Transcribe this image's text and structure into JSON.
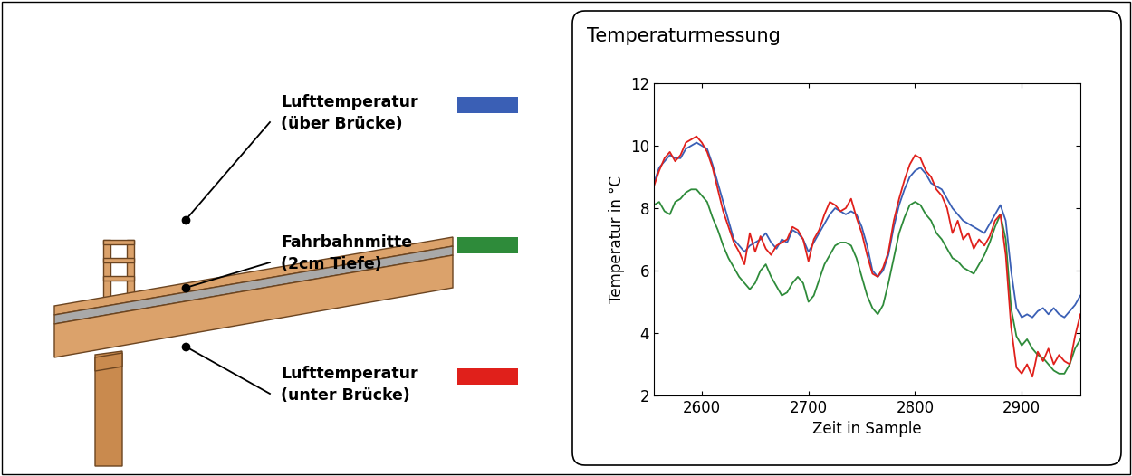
{
  "chart_data": {
    "type": "line",
    "title": "Temperaturmessung",
    "x_label": "Zeit in Sample",
    "y_label": "Temperatur in °C",
    "x": [
      2555,
      2560,
      2565,
      2570,
      2575,
      2580,
      2585,
      2590,
      2595,
      2600,
      2605,
      2610,
      2615,
      2620,
      2625,
      2630,
      2635,
      2640,
      2645,
      2650,
      2655,
      2660,
      2665,
      2670,
      2675,
      2680,
      2685,
      2690,
      2695,
      2700,
      2705,
      2710,
      2715,
      2720,
      2725,
      2730,
      2735,
      2740,
      2745,
      2750,
      2755,
      2760,
      2765,
      2770,
      2775,
      2780,
      2785,
      2790,
      2795,
      2800,
      2805,
      2810,
      2815,
      2820,
      2825,
      2830,
      2835,
      2840,
      2845,
      2850,
      2855,
      2860,
      2865,
      2870,
      2875,
      2880,
      2885,
      2890,
      2895,
      2900,
      2905,
      2910,
      2915,
      2920,
      2925,
      2930,
      2935,
      2940,
      2945,
      2950,
      2955
    ],
    "series": [
      {
        "name": "Lufttemperatur (über Brücke)",
        "color": "#3a5fb5",
        "values": [
          8.8,
          9.3,
          9.5,
          9.7,
          9.6,
          9.6,
          9.9,
          10.0,
          10.1,
          10.0,
          9.9,
          9.4,
          8.8,
          8.2,
          7.6,
          7.0,
          6.8,
          6.6,
          6.8,
          6.9,
          7.0,
          7.2,
          6.9,
          6.7,
          7.0,
          6.9,
          7.3,
          7.2,
          7.0,
          6.6,
          6.9,
          7.2,
          7.5,
          7.8,
          8.0,
          7.9,
          7.8,
          7.9,
          7.8,
          7.4,
          6.8,
          6.0,
          5.8,
          6.0,
          6.5,
          7.4,
          8.1,
          8.6,
          9.0,
          9.2,
          9.3,
          9.1,
          8.8,
          8.7,
          8.6,
          8.3,
          8.0,
          7.8,
          7.6,
          7.5,
          7.4,
          7.3,
          7.2,
          7.5,
          7.8,
          8.1,
          7.6,
          6.0,
          4.8,
          4.5,
          4.6,
          4.5,
          4.7,
          4.8,
          4.6,
          4.8,
          4.6,
          4.5,
          4.7,
          4.9,
          5.2
        ]
      },
      {
        "name": "Fahrbahnmitte (2cm Tiefe)",
        "color": "#2e8b3a",
        "values": [
          8.1,
          8.2,
          7.9,
          7.8,
          8.2,
          8.3,
          8.5,
          8.6,
          8.6,
          8.4,
          8.2,
          7.7,
          7.3,
          6.8,
          6.4,
          6.1,
          5.8,
          5.6,
          5.4,
          5.6,
          6.0,
          6.2,
          5.8,
          5.5,
          5.2,
          5.3,
          5.6,
          5.8,
          5.6,
          5.0,
          5.2,
          5.7,
          6.2,
          6.5,
          6.8,
          6.9,
          6.9,
          6.8,
          6.4,
          5.8,
          5.2,
          4.8,
          4.6,
          4.9,
          5.6,
          6.4,
          7.2,
          7.7,
          8.1,
          8.2,
          8.1,
          7.8,
          7.6,
          7.2,
          7.0,
          6.7,
          6.4,
          6.3,
          6.1,
          6.0,
          5.9,
          6.2,
          6.5,
          6.9,
          7.4,
          7.8,
          7.0,
          4.8,
          3.9,
          3.6,
          3.8,
          3.5,
          3.3,
          3.2,
          3.0,
          2.8,
          2.7,
          2.7,
          3.0,
          3.5,
          3.8
        ]
      },
      {
        "name": "Lufttemperatur (unter Brücke)",
        "color": "#e0201b",
        "values": [
          8.7,
          9.2,
          9.6,
          9.8,
          9.5,
          9.7,
          10.1,
          10.2,
          10.3,
          10.1,
          9.8,
          9.3,
          8.6,
          7.9,
          7.4,
          6.9,
          6.6,
          6.2,
          7.2,
          6.6,
          7.1,
          6.7,
          6.5,
          6.8,
          6.9,
          7.0,
          7.4,
          7.3,
          7.0,
          6.3,
          7.0,
          7.3,
          7.8,
          8.2,
          8.1,
          7.9,
          8.0,
          8.3,
          7.7,
          7.2,
          6.5,
          5.9,
          5.8,
          6.1,
          6.6,
          7.6,
          8.3,
          8.9,
          9.4,
          9.7,
          9.6,
          9.2,
          9.0,
          8.6,
          8.4,
          8.0,
          7.2,
          7.6,
          7.0,
          7.2,
          6.7,
          7.0,
          6.8,
          7.1,
          7.6,
          7.8,
          6.5,
          4.2,
          2.9,
          2.7,
          3.0,
          2.6,
          3.4,
          3.1,
          3.5,
          3.0,
          3.3,
          3.1,
          3.0,
          3.9,
          4.6
        ]
      }
    ],
    "xlim": [
      2555,
      2955
    ],
    "xticks": [
      2600,
      2700,
      2800,
      2900
    ],
    "ylim": [
      2,
      12
    ],
    "yticks": [
      2,
      4,
      6,
      8,
      10,
      12
    ],
    "grid": false
  }
}
